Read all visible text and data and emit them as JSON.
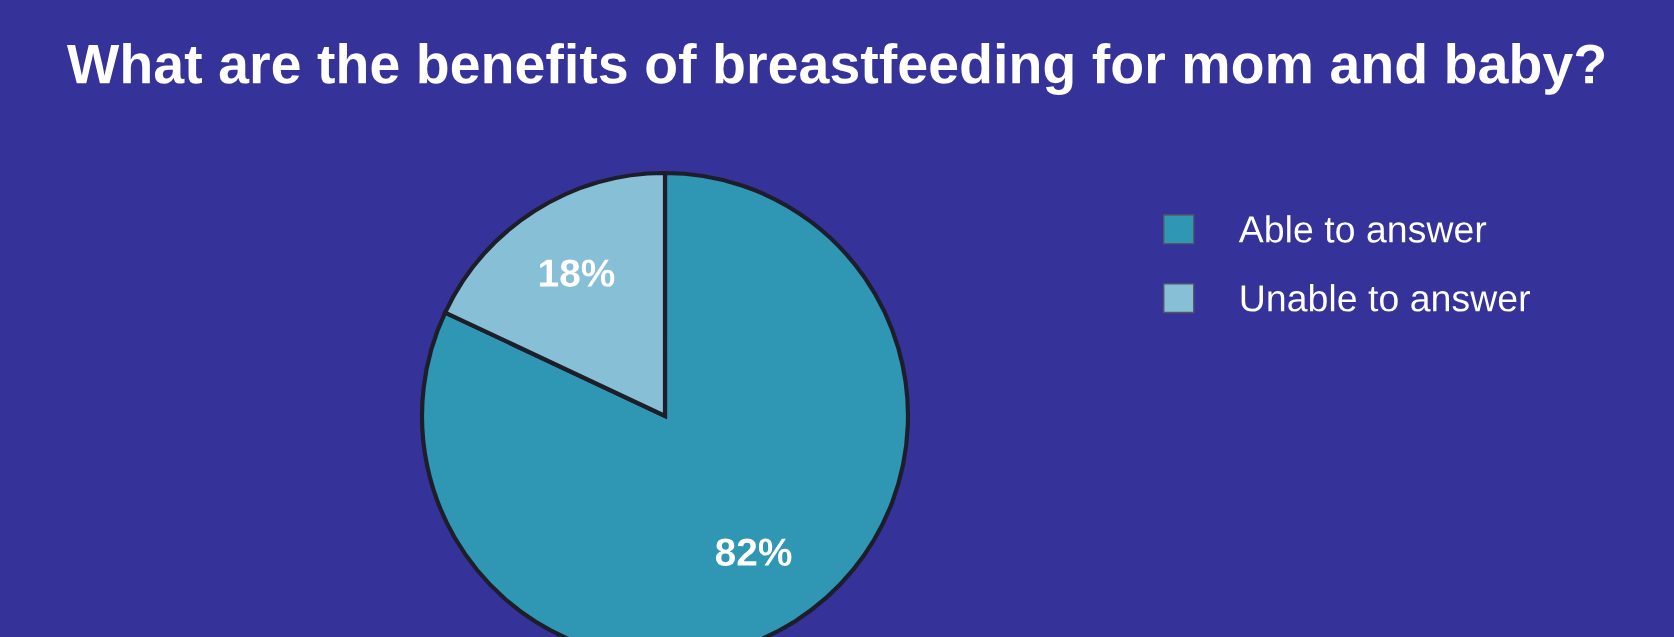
{
  "chart_data": {
    "type": "pie",
    "title": "What are the benefits of breastfeeding for mom and baby?",
    "categories": [
      "Able to answer",
      "Unable to answer"
    ],
    "values": [
      82,
      18
    ],
    "value_labels": [
      "82%",
      "18%"
    ],
    "colors": [
      "#2f96b4",
      "#86bfd6"
    ],
    "legend": "right"
  }
}
